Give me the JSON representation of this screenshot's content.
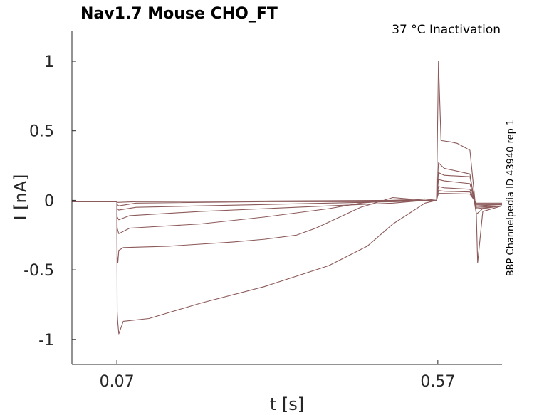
{
  "chart_data": {
    "type": "line",
    "title": "Nav1.7  Mouse  CHO_FT",
    "subtitle": "37 °C  Inactivation",
    "side_label": "BBP Channelpedia ID 43940 rep 1",
    "xlabel": "t [s]",
    "ylabel": "I [nA]",
    "xlim": [
      0.0,
      0.67
    ],
    "ylim": [
      -1.18,
      1.22
    ],
    "xticks": [
      0.07,
      0.57
    ],
    "xtick_labels": [
      "0.07",
      "0.57"
    ],
    "yticks": [
      -1,
      -0.5,
      0,
      0.5,
      1
    ],
    "ytick_labels": [
      "-1",
      "-0.5",
      "0",
      "0.5",
      "1"
    ],
    "line_color": "#8c5a5a",
    "grid": false,
    "series": [
      {
        "x": [
          0.0,
          0.07,
          0.0705,
          0.0715,
          0.073,
          0.08,
          0.12,
          0.2,
          0.3,
          0.4,
          0.46,
          0.5,
          0.55,
          0.568,
          0.571,
          0.575,
          0.59,
          0.6,
          0.62,
          0.63,
          0.632,
          0.64,
          0.67
        ],
        "y": [
          -0.01,
          -0.01,
          -0.8,
          -0.88,
          -0.96,
          -0.87,
          -0.85,
          -0.74,
          -0.62,
          -0.47,
          -0.33,
          -0.17,
          -0.02,
          0.0,
          1.0,
          0.43,
          0.42,
          0.41,
          0.36,
          -0.1,
          -0.45,
          -0.08,
          -0.04
        ]
      },
      {
        "x": [
          0.0,
          0.07,
          0.0705,
          0.0715,
          0.073,
          0.08,
          0.15,
          0.25,
          0.3,
          0.35,
          0.38,
          0.45,
          0.5,
          0.55,
          0.568,
          0.571,
          0.58,
          0.62,
          0.63,
          0.64,
          0.67
        ],
        "y": [
          -0.01,
          -0.01,
          -0.4,
          -0.45,
          -0.36,
          -0.34,
          -0.33,
          -0.3,
          -0.28,
          -0.25,
          -0.2,
          -0.05,
          0.02,
          0.0,
          0.0,
          0.27,
          0.23,
          0.19,
          -0.1,
          -0.06,
          -0.04
        ]
      },
      {
        "x": [
          0.0,
          0.07,
          0.0705,
          0.073,
          0.09,
          0.2,
          0.3,
          0.4,
          0.45,
          0.5,
          0.55,
          0.568,
          0.571,
          0.58,
          0.62,
          0.63,
          0.67
        ],
        "y": [
          -0.01,
          -0.01,
          -0.2,
          -0.24,
          -0.2,
          -0.17,
          -0.12,
          -0.06,
          -0.02,
          0.0,
          0.01,
          0.0,
          0.2,
          0.18,
          0.17,
          -0.06,
          -0.04
        ]
      },
      {
        "x": [
          0.0,
          0.07,
          0.0705,
          0.073,
          0.09,
          0.2,
          0.3,
          0.4,
          0.5,
          0.55,
          0.568,
          0.571,
          0.58,
          0.62,
          0.63,
          0.67
        ],
        "y": [
          -0.01,
          -0.01,
          -0.12,
          -0.14,
          -0.11,
          -0.08,
          -0.06,
          -0.04,
          -0.02,
          0.0,
          0.0,
          0.15,
          0.14,
          0.12,
          -0.05,
          -0.04
        ]
      },
      {
        "x": [
          0.0,
          0.07,
          0.0705,
          0.073,
          0.1,
          0.2,
          0.3,
          0.4,
          0.5,
          0.568,
          0.571,
          0.58,
          0.62,
          0.63,
          0.67
        ],
        "y": [
          -0.01,
          -0.01,
          -0.06,
          -0.07,
          -0.05,
          -0.04,
          -0.03,
          -0.02,
          -0.01,
          0.0,
          0.1,
          0.09,
          0.08,
          -0.04,
          -0.03
        ]
      },
      {
        "x": [
          0.0,
          0.07,
          0.0705,
          0.073,
          0.1,
          0.3,
          0.5,
          0.568,
          0.571,
          0.58,
          0.62,
          0.63,
          0.67
        ],
        "y": [
          -0.01,
          -0.01,
          -0.03,
          -0.04,
          -0.02,
          -0.01,
          -0.01,
          0.0,
          0.07,
          0.065,
          0.06,
          -0.03,
          -0.03
        ]
      },
      {
        "x": [
          0.0,
          0.07,
          0.0705,
          0.1,
          0.3,
          0.5,
          0.568,
          0.571,
          0.58,
          0.62,
          0.63,
          0.67
        ],
        "y": [
          -0.01,
          -0.01,
          -0.015,
          -0.01,
          -0.005,
          0.0,
          0.0,
          0.05,
          0.05,
          0.045,
          -0.02,
          -0.02
        ]
      }
    ]
  }
}
